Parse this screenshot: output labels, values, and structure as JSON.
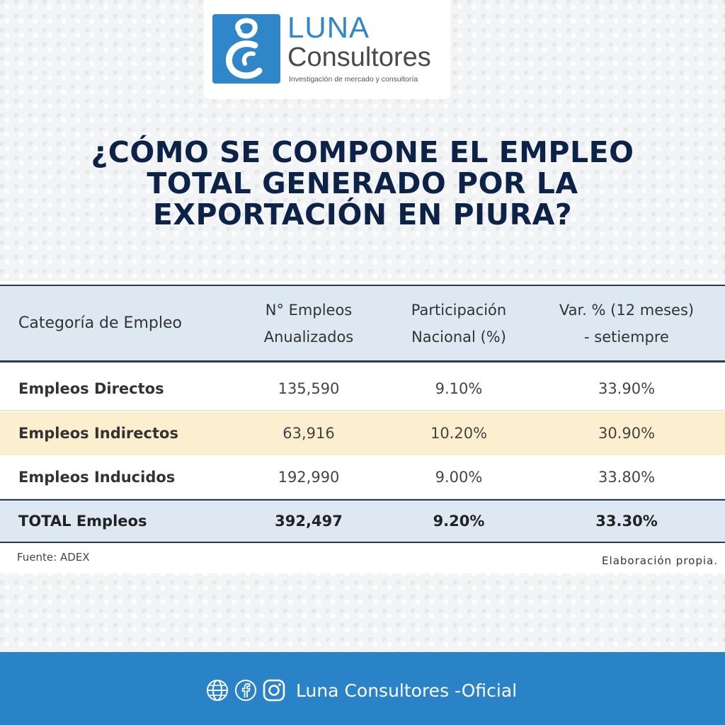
{
  "brand": {
    "name_top": "LUNA",
    "name_bottom": "Consultores",
    "tagline": "Investigación de mercado y consultoría",
    "primary_color": "#2f86c9"
  },
  "title_lines": [
    "¿CÓMO SE COMPONE EL EMPLEO",
    "TOTAL GENERADO POR LA",
    "EXPORTACIÓN EN PIURA?"
  ],
  "table": {
    "headers": [
      [
        "Categoría de Empleo"
      ],
      [
        "N° Empleos",
        "Anualizados"
      ],
      [
        "Participación",
        "Nacional (%)"
      ],
      [
        "Var. % (12 meses)",
        "- setiempre"
      ]
    ],
    "rows": [
      [
        "Empleos Directos",
        "135,590",
        "9.10%",
        "33.90%"
      ],
      [
        "Empleos Indirectos",
        "63,916",
        "10.20%",
        "30.90%"
      ],
      [
        "Empleos Inducidos",
        "192,990",
        "9.00%",
        "33.80%"
      ]
    ],
    "total": [
      "TOTAL Empleos",
      "392,497",
      "9.20%",
      "33.30%"
    ],
    "source": "Fuente: ADEX",
    "credit": "Elaboración propia."
  },
  "footer": {
    "icons": [
      "globe-icon",
      "facebook-icon",
      "instagram-icon"
    ],
    "text": "Luna Consultores -Oficial",
    "background": "#2a82c7"
  }
}
